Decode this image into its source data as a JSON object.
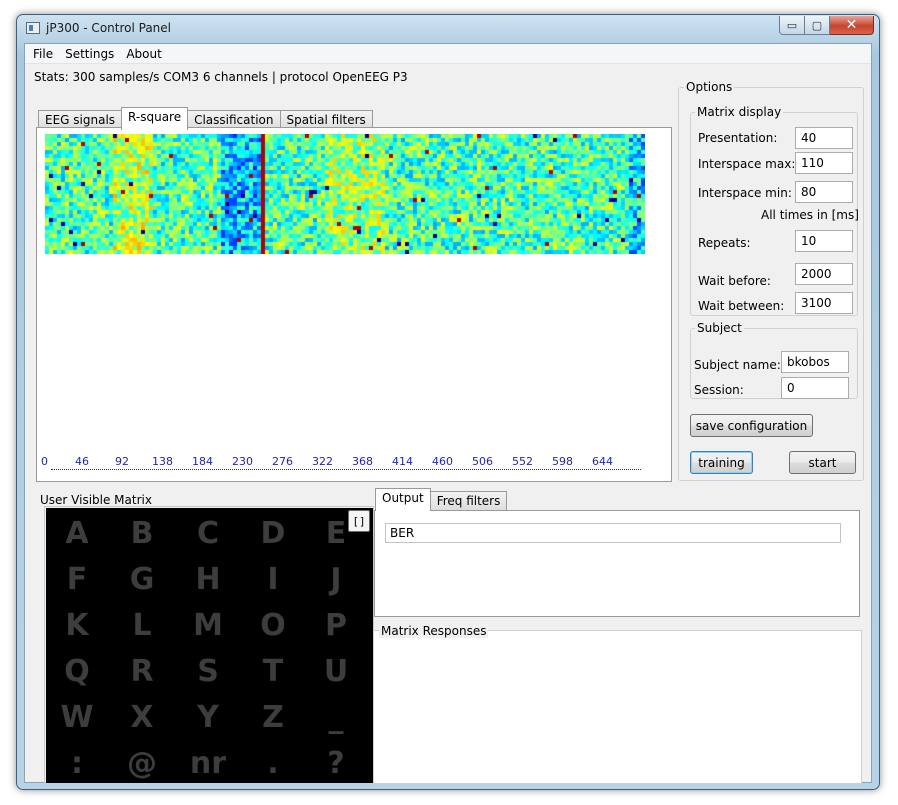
{
  "window": {
    "title": "jP300 - Control Panel",
    "controls": {
      "minimize": "▭",
      "maximize": "▢",
      "close": "✕"
    }
  },
  "menu": [
    "File",
    "Settings",
    "About"
  ],
  "stats": "Stats: 300 samples/s COM3 6 channels | protocol OpenEEG P3",
  "main_tabs": [
    "EEG signals",
    "R-square",
    "Classification",
    "Spatial filters"
  ],
  "active_main_tab": "R-square",
  "rsquare": {
    "x_ticks": [
      "0",
      "46",
      "92",
      "138",
      "184",
      "230",
      "276",
      "322",
      "368",
      "414",
      "460",
      "506",
      "552",
      "598",
      "644"
    ],
    "tick_color": "#1f1fbf"
  },
  "options": {
    "title": "Options",
    "matrix_display": {
      "title": "Matrix display",
      "presentation": {
        "label": "Presentation:",
        "value": "40"
      },
      "interspace_max": {
        "label": "Interspace max:",
        "value": "110"
      },
      "interspace_min": {
        "label": "Interspace min:",
        "value": "80"
      },
      "times_note": "All times in [ms]",
      "repeats": {
        "label": "Repeats:",
        "value": "10"
      },
      "wait_before": {
        "label": "Wait before:",
        "value": "2000"
      },
      "wait_between": {
        "label": "Wait between:",
        "value": "3100"
      }
    },
    "subject": {
      "title": "Subject",
      "name": {
        "label": "Subject name:",
        "value": "bkobos"
      },
      "session": {
        "label": "Session:",
        "value": "0"
      }
    },
    "save_button": "save configuration",
    "training_button": "training",
    "start_button": "start"
  },
  "user_matrix": {
    "title": "User Visible Matrix",
    "toggle_label": "[]",
    "rows": [
      [
        "A",
        "B",
        "C",
        "D",
        "E"
      ],
      [
        "F",
        "G",
        "H",
        "I",
        "J"
      ],
      [
        "K",
        "L",
        "M",
        "O",
        "P"
      ],
      [
        "Q",
        "R",
        "S",
        "T",
        "U"
      ],
      [
        "W",
        "X",
        "Y",
        "Z",
        "_"
      ],
      [
        ":",
        "@",
        "nr",
        ".",
        "?"
      ]
    ],
    "letter_color": "#3d3d3d"
  },
  "bottom_tabs": [
    "Output",
    "Freq filters"
  ],
  "active_bottom_tab": "Output",
  "output": {
    "value": "BER"
  },
  "matrix_responses": {
    "title": "Matrix Responses"
  }
}
